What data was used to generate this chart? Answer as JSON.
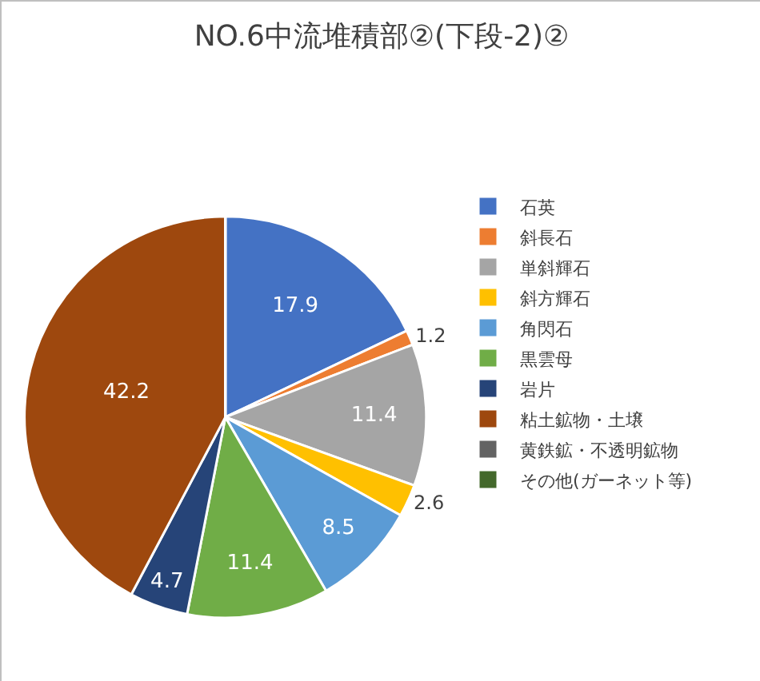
{
  "chart_data": {
    "type": "pie",
    "title": "NO.6中流堆積部②(下段-2)②",
    "categories": [
      "石英",
      "斜長石",
      "単斜輝石",
      "斜方輝石",
      "角閃石",
      "黒雲母",
      "岩片",
      "粘土鉱物・土壌",
      "黄鉄鉱・不透明鉱物",
      "その他(ガーネット等)"
    ],
    "values": [
      17.9,
      1.2,
      11.4,
      2.6,
      8.5,
      11.4,
      4.7,
      42.2,
      0,
      0
    ],
    "value_labels": [
      "17.9",
      "1.2",
      "11.4",
      "2.6",
      "8.5",
      "11.4",
      "4.7",
      "42.2",
      null,
      null
    ],
    "colors": [
      "#4472c4",
      "#ed7d31",
      "#a5a5a5",
      "#ffc000",
      "#5b9bd5",
      "#70ad47",
      "#264478",
      "#9e480e",
      "#636363",
      "#43682b"
    ],
    "legend": "right"
  }
}
